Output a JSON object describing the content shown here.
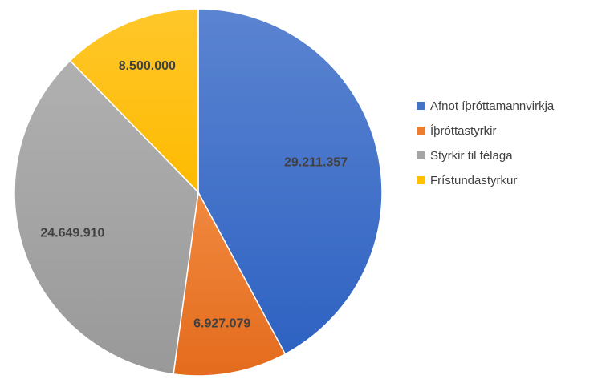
{
  "chart_data": {
    "type": "pie",
    "title": "",
    "legend_position": "right",
    "start_angle_deg": 0,
    "direction": "clockwise",
    "slices": [
      {
        "label": "Afnot íþróttamannvirkja",
        "value": 29211357,
        "value_label": "29.211.357",
        "color": "#4472C4"
      },
      {
        "label": "Íþróttastyrkir",
        "value": 6927079,
        "value_label": "6.927.079",
        "color": "#ED7D31"
      },
      {
        "label": "Styrkir til félaga",
        "value": 24649910,
        "value_label": "24.649.910",
        "color": "#A5A5A5"
      },
      {
        "label": "Frístundastyrkur",
        "value": 8500000,
        "value_label": "8.500.000",
        "color": "#FFC000"
      }
    ]
  }
}
